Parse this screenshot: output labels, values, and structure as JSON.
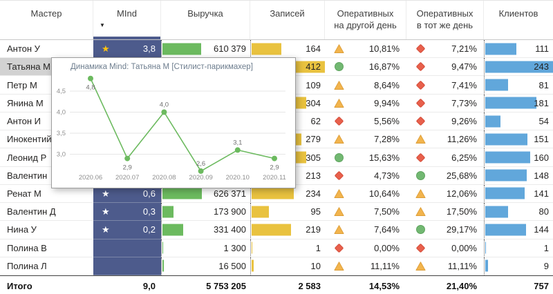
{
  "colors": {
    "mind_bg": "#4D5B8C",
    "revenue_bar": "#6CBA5F",
    "records_bar": "#E9C23F",
    "clients_bar": "#61A7DB",
    "icon_triangle": "#F2B44D",
    "icon_triangle_border": "#DD9E38",
    "icon_diamond": "#E8604C",
    "icon_diamond_border": "#D34B38",
    "icon_circle": "#72B872",
    "icon_circle_border": "#5CA25C",
    "star_gold": "#FFC30F",
    "star_white": "#FFFFFF",
    "line": "#6CBA5F"
  },
  "icons": {
    "star": "★",
    "sort_desc": "▼"
  },
  "header": {
    "master": "Мастер",
    "mind": "MInd",
    "revenue": "Выручка",
    "records": "Записей",
    "op_next_line1": "Оперативных",
    "op_next_line2": "на другой день",
    "op_same_line1": "Оперативных",
    "op_same_line2": "в тот же день",
    "clients": "Клиентов"
  },
  "bar_max": {
    "revenue": 1400000,
    "records": 412,
    "clients": 243
  },
  "rows": [
    {
      "master": "Антон У",
      "mind": "3,8",
      "star": "gold",
      "revenue": "610 379",
      "records": "164",
      "op_next": {
        "icon": "triangle",
        "value": "10,81%"
      },
      "op_same": {
        "icon": "diamond",
        "value": "7,21%"
      },
      "clients": "111",
      "highlight": false
    },
    {
      "master": "Татьяна М",
      "mind": "",
      "star": null,
      "revenue": "",
      "records": "412",
      "op_next": {
        "icon": "circle",
        "value": "16,87%"
      },
      "op_same": {
        "icon": "diamond",
        "value": "9,47%"
      },
      "clients": "243",
      "highlight": true
    },
    {
      "master": "Петр М",
      "mind": "",
      "star": null,
      "revenue": "",
      "records": "109",
      "op_next": {
        "icon": "triangle",
        "value": "8,64%"
      },
      "op_same": {
        "icon": "diamond",
        "value": "7,41%"
      },
      "clients": "81",
      "highlight": false
    },
    {
      "master": "Янина М",
      "mind": "",
      "star": null,
      "revenue": "",
      "records": "304",
      "op_next": {
        "icon": "triangle",
        "value": "9,94%"
      },
      "op_same": {
        "icon": "diamond",
        "value": "7,73%"
      },
      "clients": "181",
      "highlight": false
    },
    {
      "master": "Антон И",
      "mind": "",
      "star": null,
      "revenue": "",
      "records": "62",
      "op_next": {
        "icon": "diamond",
        "value": "5,56%"
      },
      "op_same": {
        "icon": "diamond",
        "value": "9,26%"
      },
      "clients": "54",
      "highlight": false
    },
    {
      "master": "Инокентий",
      "mind": "",
      "star": null,
      "revenue": "",
      "records": "279",
      "op_next": {
        "icon": "triangle",
        "value": "7,28%"
      },
      "op_same": {
        "icon": "triangle",
        "value": "11,26%"
      },
      "clients": "151",
      "highlight": false
    },
    {
      "master": "Леонид Р",
      "mind": "",
      "star": null,
      "revenue": "",
      "records": "305",
      "op_next": {
        "icon": "circle",
        "value": "15,63%"
      },
      "op_same": {
        "icon": "diamond",
        "value": "6,25%"
      },
      "clients": "160",
      "highlight": false
    },
    {
      "master": "Валентин",
      "mind": "",
      "star": null,
      "revenue": "",
      "records": "213",
      "op_next": {
        "icon": "diamond",
        "value": "4,73%"
      },
      "op_same": {
        "icon": "circle",
        "value": "25,68%"
      },
      "clients": "148",
      "highlight": false
    },
    {
      "master": "Ренат М",
      "mind": "0,6",
      "star": "white",
      "revenue": "626 371",
      "records": "234",
      "op_next": {
        "icon": "triangle",
        "value": "10,64%"
      },
      "op_same": {
        "icon": "triangle",
        "value": "12,06%"
      },
      "clients": "141",
      "highlight": false
    },
    {
      "master": "Валентин Д",
      "mind": "0,3",
      "star": "white",
      "revenue": "173 900",
      "records": "95",
      "op_next": {
        "icon": "triangle",
        "value": "7,50%"
      },
      "op_same": {
        "icon": "triangle",
        "value": "17,50%"
      },
      "clients": "80",
      "highlight": false
    },
    {
      "master": "Нина У",
      "mind": "0,2",
      "star": "white",
      "revenue": "331 400",
      "records": "219",
      "op_next": {
        "icon": "triangle",
        "value": "7,64%"
      },
      "op_same": {
        "icon": "circle",
        "value": "29,17%"
      },
      "clients": "144",
      "highlight": false
    },
    {
      "master": "Полина В",
      "mind": "",
      "star": null,
      "revenue": "1 300",
      "records": "1",
      "op_next": {
        "icon": "diamond",
        "value": "0,00%"
      },
      "op_same": {
        "icon": "diamond",
        "value": "0,00%"
      },
      "clients": "1",
      "highlight": false
    },
    {
      "master": "Полина Л",
      "mind": "",
      "star": null,
      "revenue": "16 500",
      "records": "10",
      "op_next": {
        "icon": "triangle",
        "value": "11,11%"
      },
      "op_same": {
        "icon": "triangle",
        "value": "11,11%"
      },
      "clients": "9",
      "highlight": false
    }
  ],
  "total": {
    "label": "Итого",
    "mind": "9,0",
    "revenue": "5 753 205",
    "records": "2 583",
    "op_next": "14,53%",
    "op_same": "21,40%",
    "clients": "757"
  },
  "tooltip": {
    "title": "Динамика Mind: Татьяна М [Стилист-парикмахер]",
    "chart_data": {
      "type": "line",
      "x": [
        "2020.06",
        "2020.07",
        "2020.08",
        "2020.09",
        "2020.10",
        "2020.11"
      ],
      "values": [
        4.8,
        2.9,
        4.0,
        2.6,
        3.1,
        2.9
      ],
      "point_labels": [
        "4,8",
        "2,9",
        "4,0",
        "2,6",
        "3,1",
        "2,9"
      ],
      "label_pos": [
        "below",
        "below",
        "above",
        "above",
        "above",
        "below"
      ],
      "y_ticks": [
        4.5,
        4.0,
        3.5,
        3.0
      ],
      "y_tick_labels": [
        "4,5",
        "4,0",
        "3,5",
        "3,0"
      ],
      "ylim": [
        2.4,
        5.0
      ],
      "grid": true,
      "legend": "none"
    }
  }
}
